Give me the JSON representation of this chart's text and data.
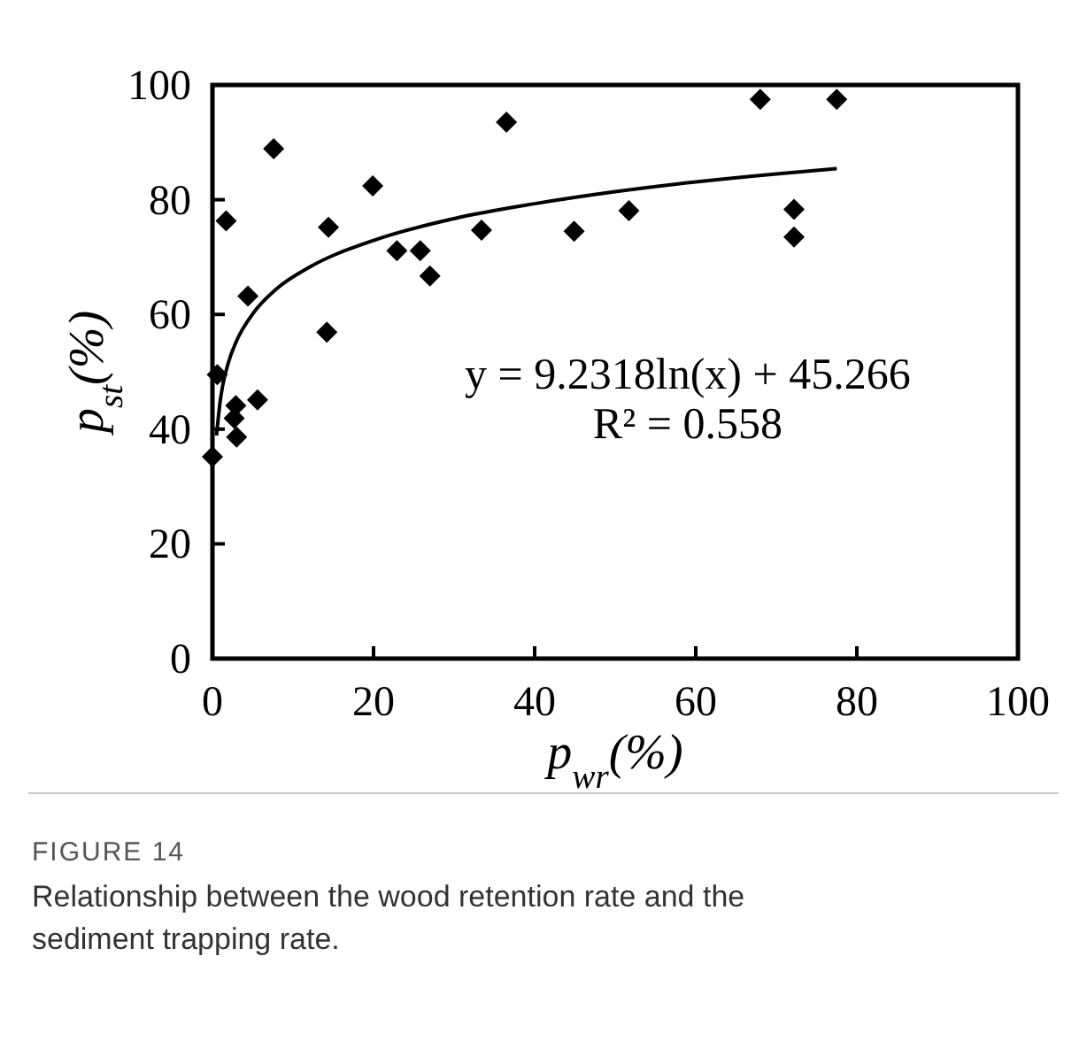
{
  "chart_data": {
    "type": "scatter",
    "xlabel": "p$_{wr}$(%)",
    "ylabel": "p$_{st}$(%)",
    "xlim": [
      0,
      100
    ],
    "xticks": [
      0,
      20,
      40,
      60,
      80,
      100
    ],
    "ylim": [
      0,
      100
    ],
    "yticks": [
      0,
      20,
      40,
      60,
      80,
      100
    ],
    "marker": "diamond",
    "series": [
      {
        "color": "#000000",
        "x": [
          7.6,
          19.9,
          1.7,
          14.4,
          33.4,
          44.9,
          51.7,
          22.9,
          25.8,
          27.0,
          4.4,
          14.2,
          0.6,
          5.6,
          2.9,
          2.7,
          3.0,
          0,
          72.2,
          72.2,
          36.5,
          68,
          77.5
        ],
        "values": [
          88.9,
          82.4,
          76.3,
          75.2,
          74.7,
          74.5,
          78.1,
          71.1,
          71.1,
          66.7,
          63.2,
          56.9,
          49.5,
          45.1,
          44.1,
          41.9,
          38.6,
          35.2,
          78.3,
          73.5,
          93.5,
          97.5,
          97.5
        ]
      },
      {
        "type": "line",
        "color": "#000000",
        "marker": "none",
        "x": [
          0.5,
          1,
          2,
          3,
          5,
          8,
          12,
          20,
          30,
          40,
          50,
          60,
          70,
          77.5
        ],
        "values": [
          38.9,
          45.3,
          51.7,
          55.4,
          60.1,
          64.5,
          68.2,
          72.9,
          76.7,
          79.3,
          81.4,
          83.1,
          84.5,
          85.4
        ]
      }
    ],
    "title": "FIGURE 14",
    "annotations": [
      "y = 9.2318ln(x) + 45.266",
      "R² = 0.558",
      "Relationship between the wood retention rate and the sediment trapping rate."
    ]
  }
}
